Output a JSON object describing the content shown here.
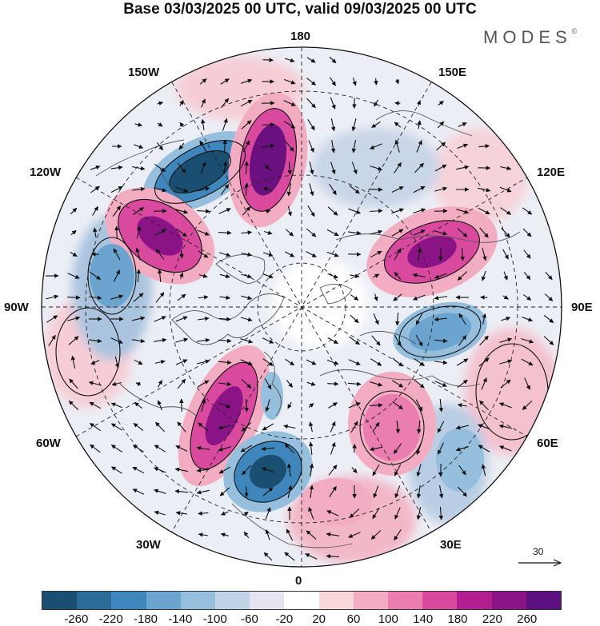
{
  "title": "Base 03/03/2025 00 UTC, valid 09/03/2025 00 UTC",
  "brand": {
    "text": "MODES",
    "mark": "©"
  },
  "map": {
    "projection": "north-polar-stereographic",
    "longitude_labels": {
      "top": "180",
      "bottom": "0",
      "left": "90W",
      "right": "90E",
      "upper_left_1": "150W",
      "upper_left_2": "120W",
      "upper_right_1": "150E",
      "upper_right_2": "120E",
      "lower_left_1": "60W",
      "lower_left_2": "30W",
      "lower_right_1": "60E",
      "lower_right_2": "30E"
    },
    "anomaly_centers": [
      {
        "sign": "negative",
        "level": -260,
        "color": "#2d5f86"
      },
      {
        "sign": "positive",
        "level": 260,
        "color": "#7b177c"
      },
      {
        "sign": "positive",
        "level": 220,
        "color": "#a1208f"
      },
      {
        "sign": "positive",
        "level": 220,
        "color": "#a1208f"
      },
      {
        "sign": "positive",
        "level": 200,
        "color": "#b2238f"
      },
      {
        "sign": "negative",
        "level": -260,
        "color": "#2d5f86"
      },
      {
        "sign": "positive",
        "level": 140,
        "color": "#e06aa8"
      },
      {
        "sign": "negative",
        "level": -140,
        "color": "#6ea2cc"
      },
      {
        "sign": "positive",
        "level": 100,
        "color": "#f0a3bf"
      },
      {
        "sign": "negative",
        "level": -120,
        "color": "#7fa8cd"
      }
    ]
  },
  "reference_vector": {
    "value": "30"
  },
  "colorbar": {
    "colors": [
      "#1b4f72",
      "#2c6a98",
      "#3f86bd",
      "#6aa4cf",
      "#95bfdc",
      "#bfd2e6",
      "#e4e5f1",
      "#ffffff",
      "#f9d6d8",
      "#f3adc2",
      "#ea7eb0",
      "#d94a9f",
      "#b41f8f",
      "#8a1486",
      "#5c0f7e"
    ],
    "ticks": [
      "-260",
      "-220",
      "-180",
      "-140",
      "-100",
      "-60",
      "-20",
      "20",
      "60",
      "100",
      "140",
      "180",
      "220",
      "260"
    ]
  }
}
